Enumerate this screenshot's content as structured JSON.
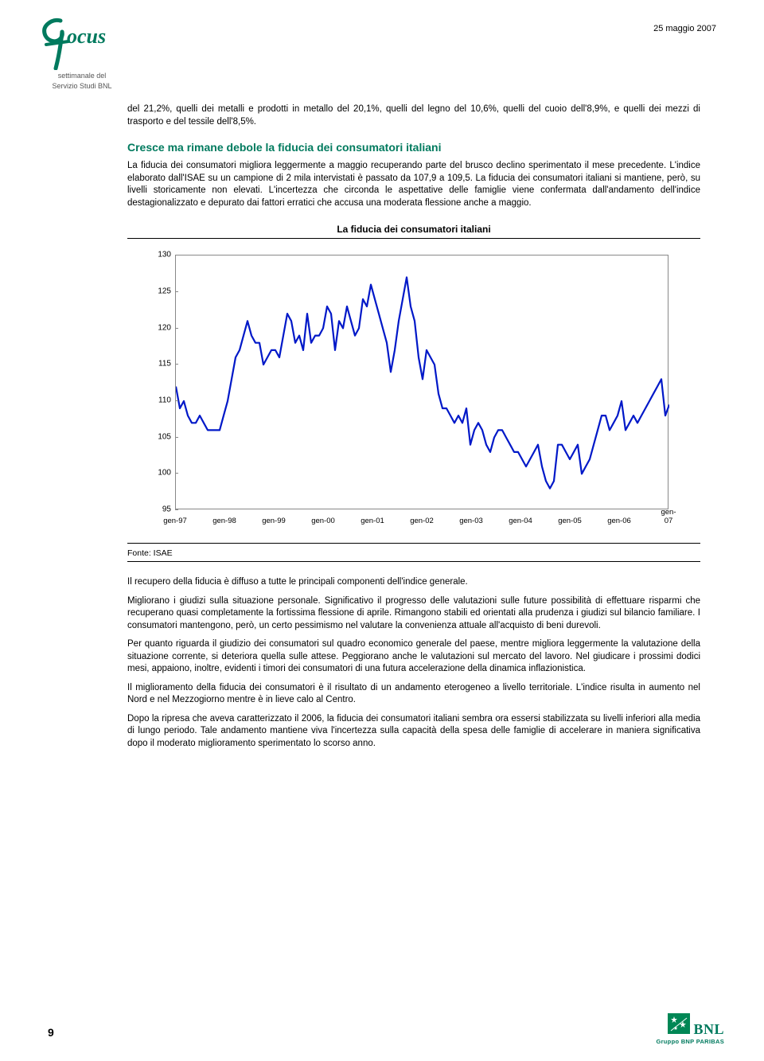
{
  "header": {
    "date": "25 maggio 2007",
    "logo_main": "ocus",
    "logo_sub1": "settimanale del",
    "logo_sub2": "Servizio Studi BNL"
  },
  "intro_para": "del 21,2%, quelli dei metalli e prodotti in metallo del 20,1%, quelli del legno del 10,6%, quelli del cuoio dell'8,9%, e quelli dei mezzi di trasporto e del tessile dell'8,5%.",
  "section": {
    "heading": "Cresce ma rimane debole la fiducia dei consumatori italiani",
    "heading_color": "#007a5e",
    "p1": "La fiducia dei consumatori migliora leggermente a maggio recuperando parte del brusco declino sperimentato il mese precedente. L'indice elaborato dall'ISAE su un campione di 2 mila intervistati è passato da 107,9 a 109,5. La fiducia dei consumatori italiani si mantiene, però, su livelli storicamente non elevati. L'incertezza che circonda le aspettative delle famiglie viene confermata dall'andamento dell'indice destagionalizzato e depurato dai fattori erratici che accusa una moderata flessione anche a maggio."
  },
  "chart": {
    "title": "La fiducia dei consumatori italiani",
    "ylim": [
      95,
      130
    ],
    "ytick_step": 5,
    "yticks": [
      95,
      100,
      105,
      110,
      115,
      120,
      125,
      130
    ],
    "xlabels": [
      "gen-97",
      "gen-98",
      "gen-99",
      "gen-00",
      "gen-01",
      "gen-02",
      "gen-03",
      "gen-04",
      "gen-05",
      "gen-06",
      "gen-07"
    ],
    "line_color": "#0018c8",
    "line_width": 2.2,
    "border_color": "#888888",
    "background_color": "#ffffff",
    "values": [
      112,
      109,
      110,
      108,
      107,
      107,
      108,
      107,
      106,
      106,
      106,
      106,
      108,
      110,
      113,
      116,
      117,
      119,
      121,
      119,
      118,
      118,
      115,
      116,
      117,
      117,
      116,
      119,
      122,
      121,
      118,
      119,
      117,
      122,
      118,
      119,
      119,
      120,
      123,
      122,
      117,
      121,
      120,
      123,
      121,
      119,
      120,
      124,
      123,
      126,
      124,
      122,
      120,
      118,
      114,
      117,
      121,
      124,
      127,
      123,
      121,
      116,
      113,
      117,
      116,
      115,
      111,
      109,
      109,
      108,
      107,
      108,
      107,
      109,
      104,
      106,
      107,
      106,
      104,
      103,
      105,
      106,
      106,
      105,
      104,
      103,
      103,
      102,
      101,
      102,
      103,
      104,
      101,
      99,
      98,
      99,
      104,
      104,
      103,
      102,
      103,
      104,
      100,
      101,
      102,
      104,
      106,
      108,
      108,
      106,
      107,
      108,
      110,
      106,
      107,
      108,
      107,
      108,
      109,
      110,
      111,
      112,
      113,
      108,
      109.5
    ],
    "n_points": 125
  },
  "source": "Fonte: ISAE",
  "body": {
    "p1": "Il recupero della fiducia è diffuso a tutte le principali componenti dell'indice generale.",
    "p2": "Migliorano i giudizi sulla situazione personale. Significativo il progresso delle valutazioni sulle future possibilità di effettuare risparmi che recuperano quasi completamente la fortissima flessione di aprile. Rimangono stabili ed orientati alla prudenza i giudizi sul bilancio familiare. I consumatori mantengono, però, un certo pessimismo nel valutare la convenienza attuale all'acquisto di beni durevoli.",
    "p3": "Per quanto riguarda il giudizio dei consumatori sul quadro economico generale del paese, mentre migliora leggermente la valutazione della situazione corrente, si deteriora quella sulle attese. Peggiorano anche le valutazioni sul mercato del lavoro. Nel giudicare i prossimi dodici mesi, appaiono, inoltre, evidenti i timori dei consumatori di una futura accelerazione della dinamica inflazionistica.",
    "p4": "Il miglioramento della fiducia dei consumatori è il risultato di un andamento eterogeneo a livello territoriale. L'indice risulta in aumento nel Nord e nel Mezzogiorno mentre è in lieve calo al Centro.",
    "p5": "Dopo la ripresa che aveva caratterizzato il 2006, la fiducia dei consumatori italiani sembra ora essersi stabilizzata su livelli inferiori alla media di lungo periodo. Tale andamento mantiene viva l'incertezza sulla capacità della spesa delle famiglie di accelerare in maniera significativa dopo il moderato miglioramento sperimentato lo scorso anno."
  },
  "footer": {
    "page": "9",
    "bnl": "BNL",
    "bnl_sub": "Gruppo BNP PARIBAS",
    "bnl_color": "#007a5e",
    "bnp_stars_bg": "#008755"
  }
}
